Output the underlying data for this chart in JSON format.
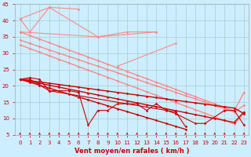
{
  "xlabel": "Vent moyen/en rafales ( km/h )",
  "background_color": "#cceeff",
  "grid_color": "#aacccc",
  "x_values": [
    0,
    1,
    2,
    3,
    4,
    5,
    6,
    7,
    8,
    9,
    10,
    11,
    12,
    13,
    14,
    15,
    16,
    17,
    18,
    19,
    20,
    21,
    22,
    23
  ],
  "series": [
    {
      "name": "light_zigzag1",
      "color": "#ff8888",
      "lw": 0.8,
      "marker": "D",
      "ms": 1.5,
      "connect_all": true,
      "data": [
        40.5,
        36.5,
        null,
        44.0,
        null,
        null,
        43.5,
        null,
        null,
        null,
        null,
        null,
        null,
        null,
        null,
        null,
        null,
        null,
        null,
        null,
        null,
        null,
        null,
        null
      ]
    },
    {
      "name": "light_zigzag2",
      "color": "#ff8888",
      "lw": 0.8,
      "marker": "D",
      "ms": 1.5,
      "connect_all": true,
      "data": [
        40.5,
        null,
        null,
        44.0,
        null,
        null,
        null,
        null,
        35.0,
        null,
        null,
        36.5,
        null,
        null,
        36.5,
        null,
        null,
        null,
        null,
        null,
        null,
        null,
        null,
        null
      ]
    },
    {
      "name": "light_zigzag3",
      "color": "#ff8888",
      "lw": 0.8,
      "marker": "D",
      "ms": 1.5,
      "connect_all": true,
      "data": [
        36.5,
        null,
        null,
        null,
        null,
        null,
        null,
        null,
        35.0,
        null,
        null,
        null,
        null,
        null,
        36.5,
        null,
        null,
        null,
        null,
        null,
        null,
        null,
        null,
        null
      ]
    },
    {
      "name": "light_zigzag4",
      "color": "#ff8888",
      "lw": 0.8,
      "marker": "D",
      "ms": 1.5,
      "connect_all": true,
      "data": [
        null,
        null,
        null,
        null,
        null,
        null,
        null,
        null,
        null,
        null,
        26.0,
        null,
        null,
        null,
        null,
        null,
        33.0,
        null,
        null,
        null,
        null,
        null,
        null,
        null
      ]
    },
    {
      "name": "light_trend1",
      "color": "#ff8888",
      "lw": 1.0,
      "marker": "D",
      "ms": 1.5,
      "connect_all": true,
      "data": [
        36.5,
        35.4,
        34.3,
        33.2,
        32.1,
        31.0,
        29.9,
        28.8,
        27.7,
        26.6,
        25.5,
        24.4,
        23.3,
        22.2,
        21.1,
        20.0,
        18.9,
        17.8,
        16.7,
        15.6,
        14.5,
        13.4,
        12.3,
        18.0
      ]
    },
    {
      "name": "light_trend2",
      "color": "#ff8888",
      "lw": 1.0,
      "marker": "D",
      "ms": 1.5,
      "connect_all": true,
      "data": [
        34.0,
        33.0,
        32.0,
        31.0,
        30.0,
        29.0,
        28.0,
        27.0,
        26.0,
        25.0,
        24.0,
        23.0,
        22.0,
        21.0,
        20.0,
        19.0,
        18.0,
        17.0,
        16.0,
        15.0,
        14.0,
        13.0,
        12.0,
        14.0
      ]
    },
    {
      "name": "light_trend3",
      "color": "#ff8888",
      "lw": 1.0,
      "marker": "D",
      "ms": 1.5,
      "connect_all": true,
      "data": [
        32.5,
        31.4,
        30.3,
        29.2,
        28.1,
        27.0,
        25.9,
        24.8,
        23.7,
        22.6,
        21.5,
        20.4,
        19.3,
        18.2,
        17.1,
        16.0,
        14.9,
        13.8,
        12.7,
        11.6,
        10.5,
        9.4,
        8.3,
        11.5
      ]
    },
    {
      "name": "dark_zigzag1",
      "color": "#cc0000",
      "lw": 0.8,
      "marker": "D",
      "ms": 1.5,
      "connect_all": true,
      "data": [
        22.0,
        22.5,
        22.0,
        18.5,
        18.5,
        18.5,
        18.0,
        8.0,
        12.5,
        12.5,
        14.5,
        14.5,
        14.5,
        12.5,
        14.5,
        12.5,
        11.5,
        null,
        8.5,
        8.5,
        null,
        12.5,
        12.5,
        8.0
      ]
    },
    {
      "name": "dark_zigzag2",
      "color": "#cc0000",
      "lw": 0.8,
      "marker": "D",
      "ms": 1.5,
      "connect_all": true,
      "data": [
        22.0,
        22.0,
        null,
        18.5,
        null,
        null,
        null,
        null,
        null,
        null,
        null,
        null,
        null,
        null,
        null,
        null,
        12.0,
        7.5,
        null,
        null,
        null,
        null,
        null,
        null
      ]
    },
    {
      "name": "dark_trend1",
      "color": "#cc0000",
      "lw": 1.0,
      "marker": "D",
      "ms": 1.5,
      "connect_all": true,
      "data": [
        22.0,
        21.1,
        20.2,
        19.3,
        18.4,
        17.5,
        16.6,
        15.7,
        14.8,
        13.9,
        13.0,
        12.1,
        11.2,
        10.3,
        9.4,
        8.5,
        7.6,
        6.7,
        null,
        null,
        null,
        null,
        null,
        null
      ]
    },
    {
      "name": "dark_trend2",
      "color": "#cc0000",
      "lw": 1.0,
      "marker": "D",
      "ms": 1.5,
      "connect_all": true,
      "data": [
        22.0,
        21.4,
        20.8,
        20.2,
        19.6,
        19.0,
        18.4,
        17.8,
        17.2,
        16.6,
        16.0,
        15.4,
        14.8,
        14.2,
        13.6,
        13.0,
        12.4,
        11.8,
        11.2,
        10.6,
        10.0,
        9.4,
        8.8,
        12.0
      ]
    },
    {
      "name": "dark_trend3",
      "color": "#cc0000",
      "lw": 1.0,
      "marker": "D",
      "ms": 1.5,
      "connect_all": true,
      "data": [
        22.0,
        21.6,
        21.2,
        20.8,
        20.4,
        20.0,
        19.6,
        19.2,
        18.8,
        18.4,
        18.0,
        17.6,
        17.2,
        16.8,
        16.4,
        16.0,
        15.6,
        15.2,
        14.8,
        14.4,
        14.0,
        13.6,
        13.2,
        11.5
      ]
    }
  ],
  "ylim": [
    5,
    45
  ],
  "xlim": [
    -0.5,
    23.5
  ],
  "yticks": [
    5,
    10,
    15,
    20,
    25,
    30,
    35,
    40,
    45
  ],
  "xticks": [
    0,
    1,
    2,
    3,
    4,
    5,
    6,
    7,
    8,
    9,
    10,
    11,
    12,
    13,
    14,
    15,
    16,
    17,
    18,
    19,
    20,
    21,
    22,
    23
  ],
  "tick_fontsize": 5,
  "tick_color": "#cc0000",
  "xlabel_fontsize": 6,
  "xlabel_color": "#cc0000"
}
